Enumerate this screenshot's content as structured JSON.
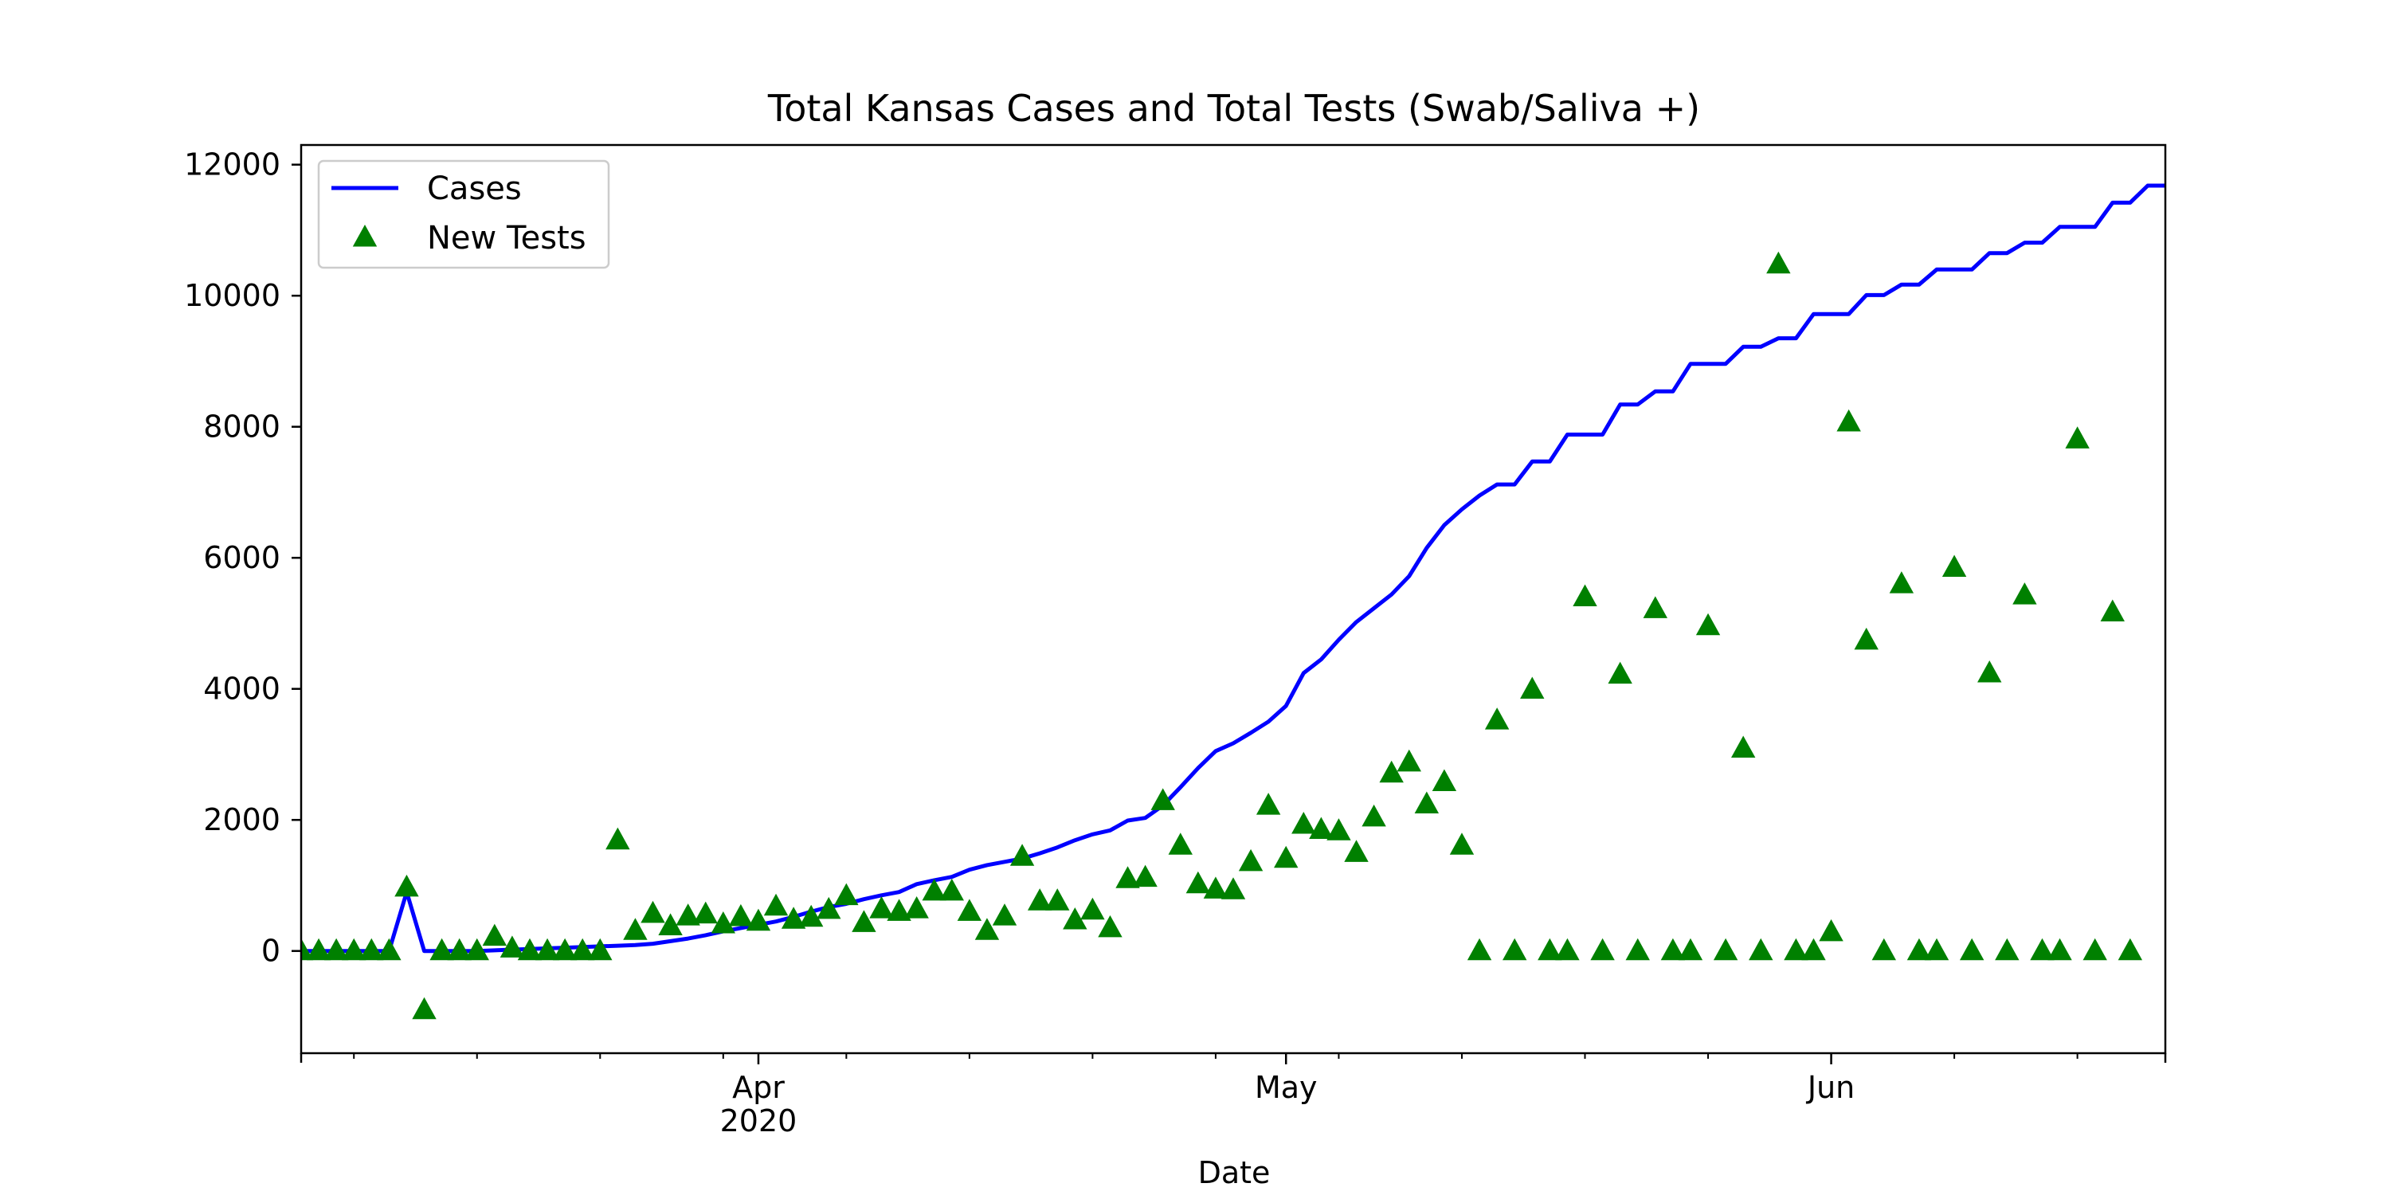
{
  "chart_data": {
    "type": "line",
    "title": "Total Kansas Cases and Total Tests (Swab/Saliva +)",
    "xlabel": "Date",
    "ylabel": "",
    "x_range": [
      "2020-03-06",
      "2020-06-20"
    ],
    "ylim": [
      -1560,
      12300
    ],
    "y_ticks": [
      0,
      2000,
      4000,
      6000,
      8000,
      10000,
      12000
    ],
    "x_ticks": [
      {
        "date": "2020-04-01",
        "label": "Apr",
        "sublabel": "2020"
      },
      {
        "date": "2020-05-01",
        "label": "May",
        "sublabel": ""
      },
      {
        "date": "2020-06-01",
        "label": "Jun",
        "sublabel": ""
      }
    ],
    "grid": false,
    "legend_position": "upper-left",
    "colors": {
      "cases": "#0000ff",
      "tests": "#008000"
    },
    "series": [
      {
        "name": "Cases",
        "style": "line",
        "points": [
          [
            "2020-03-06",
            0
          ],
          [
            "2020-03-07",
            0
          ],
          [
            "2020-03-08",
            0
          ],
          [
            "2020-03-09",
            0
          ],
          [
            "2020-03-10",
            0
          ],
          [
            "2020-03-11",
            0
          ],
          [
            "2020-03-12",
            900
          ],
          [
            "2020-03-13",
            0
          ],
          [
            "2020-03-14",
            0
          ],
          [
            "2020-03-15",
            0
          ],
          [
            "2020-03-16",
            0
          ],
          [
            "2020-03-17",
            10
          ],
          [
            "2020-03-18",
            20
          ],
          [
            "2020-03-19",
            30
          ],
          [
            "2020-03-20",
            40
          ],
          [
            "2020-03-21",
            50
          ],
          [
            "2020-03-22",
            60
          ],
          [
            "2020-03-23",
            70
          ],
          [
            "2020-03-24",
            80
          ],
          [
            "2020-03-25",
            90
          ],
          [
            "2020-03-26",
            110
          ],
          [
            "2020-03-27",
            150
          ],
          [
            "2020-03-28",
            190
          ],
          [
            "2020-03-29",
            240
          ],
          [
            "2020-03-30",
            300
          ],
          [
            "2020-03-31",
            350
          ],
          [
            "2020-04-01",
            400
          ],
          [
            "2020-04-02",
            450
          ],
          [
            "2020-04-03",
            520
          ],
          [
            "2020-04-04",
            600
          ],
          [
            "2020-04-05",
            670
          ],
          [
            "2020-04-06",
            720
          ],
          [
            "2020-04-07",
            790
          ],
          [
            "2020-04-08",
            850
          ],
          [
            "2020-04-09",
            900
          ],
          [
            "2020-04-10",
            1020
          ],
          [
            "2020-04-11",
            1080
          ],
          [
            "2020-04-12",
            1130
          ],
          [
            "2020-04-13",
            1240
          ],
          [
            "2020-04-14",
            1310
          ],
          [
            "2020-04-15",
            1360
          ],
          [
            "2020-04-16",
            1410
          ],
          [
            "2020-04-17",
            1490
          ],
          [
            "2020-04-18",
            1580
          ],
          [
            "2020-04-19",
            1690
          ],
          [
            "2020-04-20",
            1780
          ],
          [
            "2020-04-21",
            1840
          ],
          [
            "2020-04-22",
            1990
          ],
          [
            "2020-04-23",
            2030
          ],
          [
            "2020-04-24",
            2220
          ],
          [
            "2020-04-25",
            2500
          ],
          [
            "2020-04-26",
            2790
          ],
          [
            "2020-04-27",
            3050
          ],
          [
            "2020-04-28",
            3170
          ],
          [
            "2020-04-29",
            3330
          ],
          [
            "2020-04-30",
            3500
          ],
          [
            "2020-05-01",
            3740
          ],
          [
            "2020-05-02",
            4240
          ],
          [
            "2020-05-03",
            4450
          ],
          [
            "2020-05-04",
            4750
          ],
          [
            "2020-05-05",
            5020
          ],
          [
            "2020-05-06",
            5230
          ],
          [
            "2020-05-07",
            5440
          ],
          [
            "2020-05-08",
            5720
          ],
          [
            "2020-05-09",
            6150
          ],
          [
            "2020-05-10",
            6500
          ],
          [
            "2020-05-11",
            6740
          ],
          [
            "2020-05-12",
            6950
          ],
          [
            "2020-05-13",
            7120
          ],
          [
            "2020-05-14",
            7120
          ],
          [
            "2020-05-15",
            7470
          ],
          [
            "2020-05-16",
            7470
          ],
          [
            "2020-05-17",
            7880
          ],
          [
            "2020-05-18",
            7880
          ],
          [
            "2020-05-19",
            7880
          ],
          [
            "2020-05-20",
            8340
          ],
          [
            "2020-05-21",
            8340
          ],
          [
            "2020-05-22",
            8540
          ],
          [
            "2020-05-23",
            8540
          ],
          [
            "2020-05-24",
            8960
          ],
          [
            "2020-05-25",
            8960
          ],
          [
            "2020-05-26",
            8960
          ],
          [
            "2020-05-27",
            9220
          ],
          [
            "2020-05-28",
            9220
          ],
          [
            "2020-05-29",
            9350
          ],
          [
            "2020-05-30",
            9350
          ],
          [
            "2020-05-31",
            9720
          ],
          [
            "2020-06-01",
            9720
          ],
          [
            "2020-06-02",
            9720
          ],
          [
            "2020-06-03",
            10010
          ],
          [
            "2020-06-04",
            10010
          ],
          [
            "2020-06-05",
            10170
          ],
          [
            "2020-06-06",
            10170
          ],
          [
            "2020-06-07",
            10400
          ],
          [
            "2020-06-08",
            10400
          ],
          [
            "2020-06-09",
            10400
          ],
          [
            "2020-06-10",
            10650
          ],
          [
            "2020-06-11",
            10650
          ],
          [
            "2020-06-12",
            10810
          ],
          [
            "2020-06-13",
            10810
          ],
          [
            "2020-06-14",
            11050
          ],
          [
            "2020-06-15",
            11050
          ],
          [
            "2020-06-16",
            11050
          ],
          [
            "2020-06-17",
            11420
          ],
          [
            "2020-06-18",
            11420
          ],
          [
            "2020-06-19",
            11680
          ],
          [
            "2020-06-20",
            11680
          ]
        ]
      },
      {
        "name": "New Tests",
        "style": "markers",
        "points": [
          [
            "2020-03-06",
            0
          ],
          [
            "2020-03-07",
            0
          ],
          [
            "2020-03-08",
            0
          ],
          [
            "2020-03-09",
            0
          ],
          [
            "2020-03-10",
            0
          ],
          [
            "2020-03-11",
            0
          ],
          [
            "2020-03-12",
            970
          ],
          [
            "2020-03-13",
            -900
          ],
          [
            "2020-03-14",
            0
          ],
          [
            "2020-03-15",
            0
          ],
          [
            "2020-03-16",
            0
          ],
          [
            "2020-03-17",
            220
          ],
          [
            "2020-03-18",
            40
          ],
          [
            "2020-03-19",
            0
          ],
          [
            "2020-03-20",
            0
          ],
          [
            "2020-03-21",
            0
          ],
          [
            "2020-03-22",
            0
          ],
          [
            "2020-03-23",
            0
          ],
          [
            "2020-03-24",
            1690
          ],
          [
            "2020-03-25",
            310
          ],
          [
            "2020-03-26",
            570
          ],
          [
            "2020-03-27",
            380
          ],
          [
            "2020-03-28",
            530
          ],
          [
            "2020-03-29",
            560
          ],
          [
            "2020-03-30",
            410
          ],
          [
            "2020-03-31",
            520
          ],
          [
            "2020-04-01",
            450
          ],
          [
            "2020-04-02",
            680
          ],
          [
            "2020-04-03",
            480
          ],
          [
            "2020-04-04",
            510
          ],
          [
            "2020-04-05",
            630
          ],
          [
            "2020-04-06",
            840
          ],
          [
            "2020-04-07",
            430
          ],
          [
            "2020-04-08",
            640
          ],
          [
            "2020-04-09",
            600
          ],
          [
            "2020-04-10",
            640
          ],
          [
            "2020-04-11",
            910
          ],
          [
            "2020-04-12",
            910
          ],
          [
            "2020-04-13",
            600
          ],
          [
            "2020-04-14",
            310
          ],
          [
            "2020-04-15",
            530
          ],
          [
            "2020-04-16",
            1440
          ],
          [
            "2020-04-17",
            760
          ],
          [
            "2020-04-18",
            760
          ],
          [
            "2020-04-19",
            470
          ],
          [
            "2020-04-20",
            620
          ],
          [
            "2020-04-21",
            350
          ],
          [
            "2020-04-22",
            1100
          ],
          [
            "2020-04-23",
            1120
          ],
          [
            "2020-04-24",
            2290
          ],
          [
            "2020-04-25",
            1610
          ],
          [
            "2020-04-26",
            1020
          ],
          [
            "2020-04-27",
            940
          ],
          [
            "2020-04-28",
            930
          ],
          [
            "2020-04-29",
            1360
          ],
          [
            "2020-04-30",
            2220
          ],
          [
            "2020-05-01",
            1410
          ],
          [
            "2020-05-02",
            1930
          ],
          [
            "2020-05-03",
            1850
          ],
          [
            "2020-05-04",
            1830
          ],
          [
            "2020-05-05",
            1500
          ],
          [
            "2020-05-06",
            2040
          ],
          [
            "2020-05-07",
            2710
          ],
          [
            "2020-05-08",
            2880
          ],
          [
            "2020-05-09",
            2240
          ],
          [
            "2020-05-10",
            2580
          ],
          [
            "2020-05-11",
            1610
          ],
          [
            "2020-05-12",
            0
          ],
          [
            "2020-05-13",
            3520
          ],
          [
            "2020-05-14",
            0
          ],
          [
            "2020-05-15",
            3990
          ],
          [
            "2020-05-16",
            0
          ],
          [
            "2020-05-17",
            0
          ],
          [
            "2020-05-18",
            5400
          ],
          [
            "2020-05-19",
            0
          ],
          [
            "2020-05-20",
            4220
          ],
          [
            "2020-05-21",
            0
          ],
          [
            "2020-05-22",
            5220
          ],
          [
            "2020-05-23",
            0
          ],
          [
            "2020-05-24",
            0
          ],
          [
            "2020-05-25",
            4960
          ],
          [
            "2020-05-26",
            0
          ],
          [
            "2020-05-27",
            3090
          ],
          [
            "2020-05-28",
            0
          ],
          [
            "2020-05-29",
            10480
          ],
          [
            "2020-05-30",
            0
          ],
          [
            "2020-05-31",
            0
          ],
          [
            "2020-06-01",
            290
          ],
          [
            "2020-06-02",
            8070
          ],
          [
            "2020-06-03",
            4740
          ],
          [
            "2020-06-04",
            0
          ],
          [
            "2020-06-05",
            5600
          ],
          [
            "2020-06-06",
            0
          ],
          [
            "2020-06-07",
            0
          ],
          [
            "2020-06-08",
            5850
          ],
          [
            "2020-06-09",
            0
          ],
          [
            "2020-06-10",
            4240
          ],
          [
            "2020-06-11",
            0
          ],
          [
            "2020-06-12",
            5430
          ],
          [
            "2020-06-13",
            0
          ],
          [
            "2020-06-14",
            0
          ],
          [
            "2020-06-15",
            7810
          ],
          [
            "2020-06-16",
            0
          ],
          [
            "2020-06-17",
            5170
          ],
          [
            "2020-06-18",
            0
          ]
        ]
      }
    ]
  }
}
